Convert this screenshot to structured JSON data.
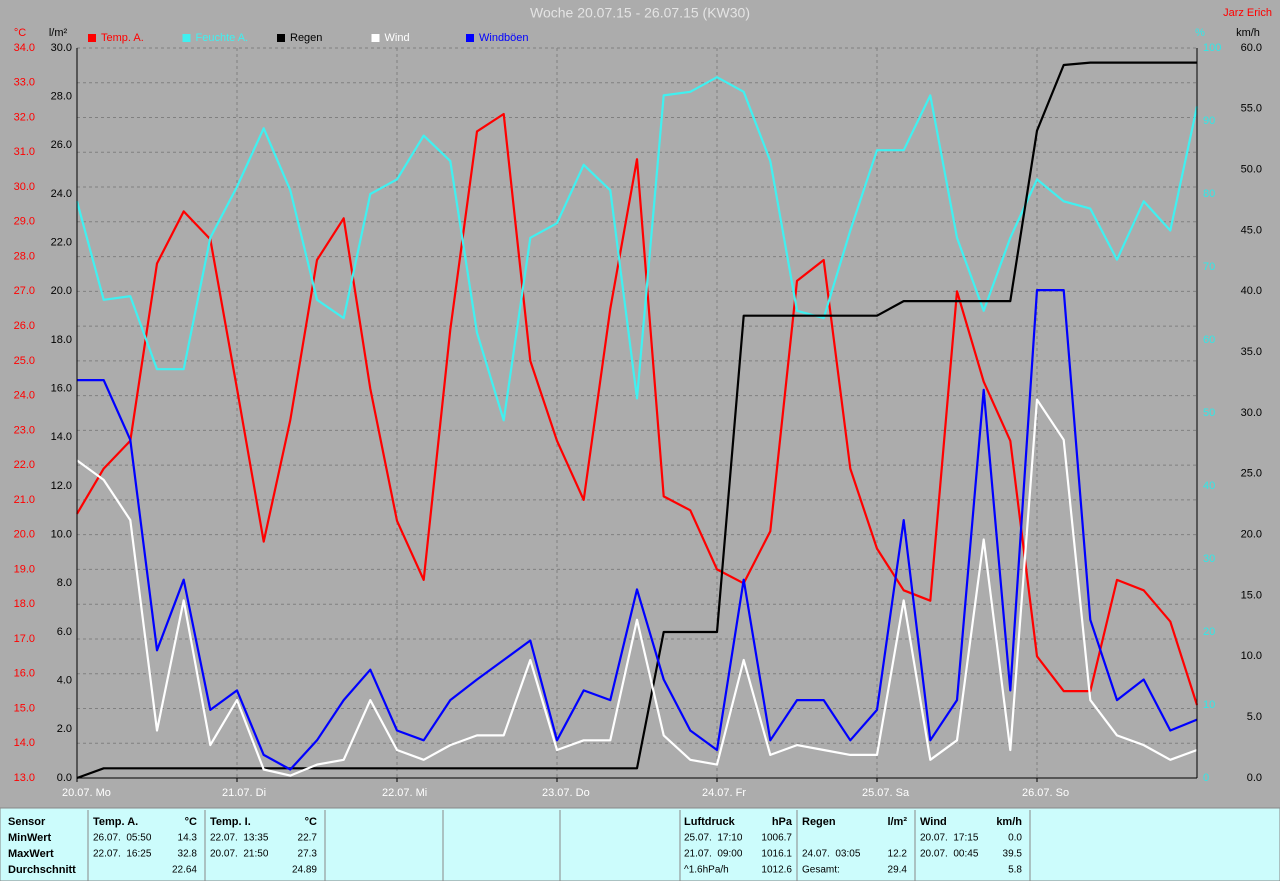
{
  "chart_data": {
    "type": "line",
    "title": "Woche 20.07.15 - 26.07.15 (KW30)",
    "author": "Jarz Erich",
    "grid": true,
    "x": [
      0,
      4,
      8,
      12,
      16,
      20,
      24,
      28,
      32,
      36,
      40,
      44,
      48,
      52,
      56,
      60,
      64,
      68,
      72,
      76,
      80,
      84,
      88,
      92,
      96,
      100,
      104,
      108,
      112,
      116,
      120,
      124,
      128,
      132,
      136,
      140,
      144,
      148,
      152,
      156,
      160,
      164,
      168
    ],
    "xlim": [
      0,
      168
    ],
    "xticks": [
      {
        "value": 0,
        "label": "20.07. Mo"
      },
      {
        "value": 24,
        "label": "21.07. Di"
      },
      {
        "value": 48,
        "label": "22.07. Mi"
      },
      {
        "value": 72,
        "label": "23.07. Do"
      },
      {
        "value": 96,
        "label": "24.07. Fr"
      },
      {
        "value": 120,
        "label": "25.07. Sa"
      },
      {
        "value": 144,
        "label": "26.07. So"
      }
    ],
    "axes": {
      "y": {
        "label": "°C",
        "color": "#ff0000",
        "lim": [
          13,
          34
        ],
        "ticks": [
          {
            "value": 13,
            "label": "13.0"
          },
          {
            "value": 14,
            "label": "14.0"
          },
          {
            "value": 15,
            "label": "15.0"
          },
          {
            "value": 16,
            "label": "16.0"
          },
          {
            "value": 17,
            "label": "17.0"
          },
          {
            "value": 18,
            "label": "18.0"
          },
          {
            "value": 19,
            "label": "19.0"
          },
          {
            "value": 20,
            "label": "20.0"
          },
          {
            "value": 21,
            "label": "21.0"
          },
          {
            "value": 22,
            "label": "22.0"
          },
          {
            "value": 23,
            "label": "23.0"
          },
          {
            "value": 24,
            "label": "24.0"
          },
          {
            "value": 25,
            "label": "25.0"
          },
          {
            "value": 26,
            "label": "26.0"
          },
          {
            "value": 27,
            "label": "27.0"
          },
          {
            "value": 28,
            "label": "28.0"
          },
          {
            "value": 29,
            "label": "29.0"
          },
          {
            "value": 30,
            "label": "30.0"
          },
          {
            "value": 31,
            "label": "31.0"
          },
          {
            "value": 32,
            "label": "32.0"
          },
          {
            "value": 33,
            "label": "33.0"
          },
          {
            "value": 34,
            "label": "34.0"
          }
        ]
      },
      "y2": {
        "label": "l/m²",
        "color": "#000000",
        "lim": [
          0,
          30
        ],
        "ticks": [
          {
            "value": 0,
            "label": "0.0"
          },
          {
            "value": 2,
            "label": "2.0"
          },
          {
            "value": 4,
            "label": "4.0"
          },
          {
            "value": 6,
            "label": "6.0"
          },
          {
            "value": 8,
            "label": "8.0"
          },
          {
            "value": 10,
            "label": "10.0"
          },
          {
            "value": 12,
            "label": "12.0"
          },
          {
            "value": 14,
            "label": "14.0"
          },
          {
            "value": 16,
            "label": "16.0"
          },
          {
            "value": 18,
            "label": "18.0"
          },
          {
            "value": 20,
            "label": "20.0"
          },
          {
            "value": 22,
            "label": "22.0"
          },
          {
            "value": 24,
            "label": "24.0"
          },
          {
            "value": 26,
            "label": "26.0"
          },
          {
            "value": 28,
            "label": "28.0"
          },
          {
            "value": 30,
            "label": "30.0"
          }
        ]
      },
      "y3": {
        "label": "%",
        "color": "#30e8e8",
        "lim": [
          0,
          100
        ],
        "ticks": [
          0,
          10,
          20,
          30,
          40,
          50,
          60,
          70,
          80,
          90,
          100
        ]
      },
      "y4": {
        "label": "km/h",
        "color": "#000000",
        "lim": [
          0,
          60
        ],
        "ticks": [
          {
            "value": 0,
            "label": "0.0"
          },
          {
            "value": 5,
            "label": "5.0"
          },
          {
            "value": 10,
            "label": "10.0"
          },
          {
            "value": 15,
            "label": "15.0"
          },
          {
            "value": 20,
            "label": "20.0"
          },
          {
            "value": 25,
            "label": "25.0"
          },
          {
            "value": 30,
            "label": "30.0"
          },
          {
            "value": 35,
            "label": "35.0"
          },
          {
            "value": 40,
            "label": "40.0"
          },
          {
            "value": 45,
            "label": "45.0"
          },
          {
            "value": 50,
            "label": "50.0"
          },
          {
            "value": 55,
            "label": "55.0"
          },
          {
            "value": 60,
            "label": "60.0"
          }
        ]
      }
    },
    "series": [
      {
        "name": "Temp. A.",
        "color": "#ff0000",
        "axis": "y",
        "values": [
          20.6,
          21.9,
          22.7,
          27.8,
          29.3,
          28.5,
          24.2,
          19.8,
          23.3,
          27.9,
          29.1,
          24.2,
          20.4,
          18.7,
          25.9,
          31.6,
          32.1,
          25.0,
          22.7,
          21.0,
          26.5,
          30.8,
          21.1,
          20.7,
          19.0,
          18.6,
          20.1,
          27.3,
          27.9,
          21.9,
          19.6,
          18.4,
          18.1,
          27.0,
          24.4,
          22.7,
          16.5,
          15.5,
          15.5,
          18.7,
          18.4,
          17.5,
          15.1
        ]
      },
      {
        "name": "Feuchte A.",
        "color": "#40f0f0",
        "axis": "y3",
        "values": [
          79,
          65.5,
          66,
          56,
          56,
          74,
          81,
          89,
          80.5,
          65.5,
          63,
          80,
          82,
          88,
          84.5,
          61,
          49,
          74,
          76,
          84,
          80.5,
          52,
          93.5,
          94,
          96,
          94,
          84.5,
          64,
          63,
          75,
          86,
          86,
          93.5,
          74,
          64,
          74,
          82,
          79,
          78,
          71,
          79,
          75,
          92
        ]
      },
      {
        "name": "Regen",
        "color": "#000000",
        "axis": "y2",
        "values": [
          0,
          0.4,
          0.4,
          0.4,
          0.4,
          0.4,
          0.4,
          0.4,
          0.4,
          0.4,
          0.4,
          0.4,
          0.4,
          0.4,
          0.4,
          0.4,
          0.4,
          0.4,
          0.4,
          0.4,
          0.4,
          0.4,
          6.0,
          6.0,
          6.0,
          19.0,
          19.0,
          19.0,
          19.0,
          19.0,
          19.0,
          19.6,
          19.6,
          19.6,
          19.6,
          19.6,
          26.6,
          29.3,
          29.4,
          29.4,
          29.4,
          29.4,
          29.4
        ]
      },
      {
        "name": "Wind",
        "color": "#ffffff",
        "axis": "y4",
        "values": [
          26.1,
          24.5,
          21.2,
          3.9,
          14.6,
          2.7,
          6.4,
          0.7,
          0.2,
          1.1,
          1.5,
          6.4,
          2.3,
          1.5,
          2.7,
          3.5,
          3.5,
          9.7,
          2.3,
          3.1,
          3.1,
          13.0,
          3.5,
          1.5,
          1.1,
          9.7,
          1.9,
          2.7,
          2.3,
          1.9,
          1.9,
          14.6,
          1.5,
          3.1,
          19.6,
          2.3,
          31.1,
          27.8,
          6.4,
          3.5,
          2.7,
          1.5,
          2.3
        ]
      },
      {
        "name": "Windböen",
        "color": "#0000ff",
        "axis": "y4",
        "values": [
          32.7,
          32.7,
          27.8,
          10.5,
          16.3,
          5.6,
          7.2,
          1.9,
          0.7,
          3.1,
          6.4,
          8.9,
          3.9,
          3.1,
          6.4,
          8.1,
          9.7,
          11.3,
          3.1,
          7.2,
          6.4,
          15.5,
          8.1,
          3.9,
          2.3,
          16.3,
          3.1,
          6.4,
          6.4,
          3.1,
          5.6,
          21.2,
          3.1,
          6.4,
          31.9,
          7.2,
          40.1,
          40.1,
          13.0,
          6.4,
          8.1,
          3.9,
          4.8
        ]
      }
    ]
  },
  "stats": {
    "row_labels": [
      "Sensor",
      "MinWert",
      "MaxWert",
      "Durchschnitt"
    ],
    "sensors": [
      {
        "name": "Temp. A.",
        "unit": "°C",
        "rows": [
          [
            "26.07.  05:50",
            "14.3"
          ],
          [
            "22.07.  16:25",
            "32.8"
          ],
          [
            "22.64"
          ]
        ]
      },
      {
        "name": "Temp. I.",
        "unit": "°C",
        "rows": [
          [
            "22.07.  13:35",
            "22.7"
          ],
          [
            "20.07.  21:50",
            "27.3"
          ],
          [
            "24.89"
          ]
        ]
      },
      {
        "name": "Luftdruck",
        "unit": "hPa",
        "rows": [
          [
            "25.07.  17:10",
            "1006.7"
          ],
          [
            "21.07.  09:00",
            "1016.1"
          ],
          [
            "^1.6hPa/h",
            "1012.6"
          ]
        ]
      },
      {
        "name": "Regen",
        "unit": "l/m²",
        "rows": [
          null,
          [
            "24.07.  03:05",
            "12.2"
          ],
          [
            "Gesamt:",
            "29.4"
          ]
        ]
      },
      {
        "name": "Wind",
        "unit": "km/h",
        "rows": [
          [
            "20.07.  17:15",
            "0.0"
          ],
          [
            "20.07.  00:45",
            "39.5"
          ],
          [
            "5.8"
          ]
        ]
      }
    ]
  }
}
